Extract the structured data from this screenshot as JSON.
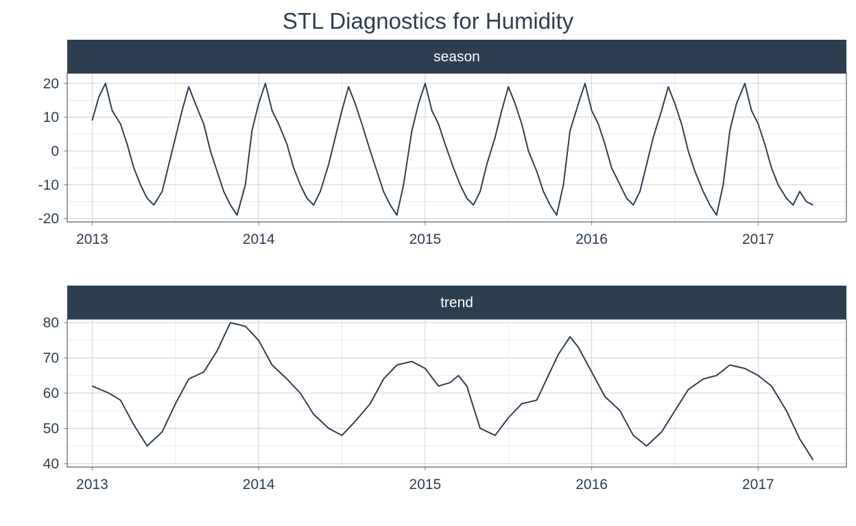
{
  "chart_data": {
    "type": "line",
    "title": "STL Diagnostics for Humidity",
    "xlabel": "",
    "ylabel": "",
    "grid": true,
    "line_color": "#2c3e50",
    "strip_color": "#2c3e50",
    "panels": [
      {
        "name": "season",
        "strip_label": "season",
        "xlim": [
          2012.85,
          2017.53
        ],
        "ylim": [
          -21,
          23
        ],
        "x_ticks": [
          2013,
          2014,
          2015,
          2016,
          2017
        ],
        "x_tick_labels": [
          "2013",
          "2014",
          "2015",
          "2016",
          "2017"
        ],
        "y_ticks": [
          -20,
          -10,
          0,
          10,
          20
        ],
        "y_tick_labels": [
          "-20",
          "-10",
          "0",
          "10",
          "20"
        ],
        "series": [
          {
            "x": [
              2013.0,
              2013.04,
              2013.08,
              2013.12,
              2013.17,
              2013.21,
              2013.25,
              2013.29,
              2013.33,
              2013.37,
              2013.42,
              2013.46,
              2013.5,
              2013.54,
              2013.58,
              2013.62,
              2013.67,
              2013.71,
              2013.75,
              2013.79,
              2013.83,
              2013.87,
              2013.92,
              2013.96,
              2014.0,
              2014.04,
              2014.08,
              2014.12,
              2014.17,
              2014.21,
              2014.25,
              2014.29,
              2014.33,
              2014.37,
              2014.42,
              2014.46,
              2014.5,
              2014.54,
              2014.58,
              2014.62,
              2014.67,
              2014.71,
              2014.75,
              2014.79,
              2014.83,
              2014.87,
              2014.92,
              2014.96,
              2015.0,
              2015.04,
              2015.08,
              2015.12,
              2015.17,
              2015.21,
              2015.25,
              2015.29,
              2015.33,
              2015.37,
              2015.42,
              2015.46,
              2015.5,
              2015.54,
              2015.58,
              2015.62,
              2015.67,
              2015.71,
              2015.75,
              2015.79,
              2015.83,
              2015.87,
              2015.92,
              2015.96,
              2016.0,
              2016.04,
              2016.08,
              2016.12,
              2016.17,
              2016.21,
              2016.25,
              2016.29,
              2016.33,
              2016.37,
              2016.42,
              2016.46,
              2016.5,
              2016.54,
              2016.58,
              2016.62,
              2016.67,
              2016.71,
              2016.75,
              2016.79,
              2016.83,
              2016.87,
              2016.92,
              2016.96,
              2017.0,
              2017.04,
              2017.08,
              2017.12,
              2017.17,
              2017.21,
              2017.25,
              2017.29,
              2017.33
            ],
            "y": [
              9,
              16,
              20,
              12,
              8,
              2,
              -5,
              -10,
              -14,
              -16,
              -12,
              -4,
              4,
              12,
              19,
              14,
              8,
              0,
              -6,
              -12,
              -16,
              -19,
              -10,
              6,
              14,
              20,
              12,
              8,
              2,
              -5,
              -10,
              -14,
              -16,
              -12,
              -4,
              4,
              12,
              19,
              14,
              8,
              0,
              -6,
              -12,
              -16,
              -19,
              -10,
              6,
              14,
              20,
              12,
              8,
              2,
              -5,
              -10,
              -14,
              -16,
              -12,
              -4,
              4,
              12,
              19,
              14,
              8,
              0,
              -6,
              -12,
              -16,
              -19,
              -10,
              6,
              14,
              20,
              12,
              8,
              2,
              -5,
              -10,
              -14,
              -16,
              -12,
              -4,
              4,
              12,
              19,
              14,
              8,
              0,
              -6,
              -12,
              -16,
              -19,
              -10,
              6,
              14,
              20,
              12,
              8,
              2,
              -5,
              -10,
              -14,
              -16,
              -12,
              -15,
              -16
            ]
          }
        ]
      },
      {
        "name": "trend",
        "strip_label": "trend",
        "xlim": [
          2012.85,
          2017.53
        ],
        "ylim": [
          39,
          81
        ],
        "x_ticks": [
          2013,
          2014,
          2015,
          2016,
          2017
        ],
        "x_tick_labels": [
          "2013",
          "2014",
          "2015",
          "2016",
          "2017"
        ],
        "y_ticks": [
          40,
          50,
          60,
          70,
          80
        ],
        "y_tick_labels": [
          "40",
          "50",
          "60",
          "70",
          "80"
        ],
        "series": [
          {
            "x": [
              2013.0,
              2013.1,
              2013.17,
              2013.25,
              2013.33,
              2013.42,
              2013.5,
              2013.58,
              2013.67,
              2013.75,
              2013.83,
              2013.92,
              2014.0,
              2014.08,
              2014.17,
              2014.25,
              2014.33,
              2014.42,
              2014.5,
              2014.58,
              2014.67,
              2014.75,
              2014.83,
              2014.92,
              2015.0,
              2015.08,
              2015.15,
              2015.2,
              2015.25,
              2015.33,
              2015.42,
              2015.5,
              2015.58,
              2015.67,
              2015.75,
              2015.8,
              2015.87,
              2015.92,
              2016.0,
              2016.08,
              2016.17,
              2016.25,
              2016.33,
              2016.42,
              2016.5,
              2016.58,
              2016.67,
              2016.75,
              2016.83,
              2016.92,
              2017.0,
              2017.08,
              2017.17,
              2017.25,
              2017.33
            ],
            "y": [
              62,
              60,
              58,
              51,
              45,
              49,
              57,
              64,
              66,
              72,
              80,
              79,
              75,
              68,
              64,
              60,
              54,
              50,
              48,
              52,
              57,
              64,
              68,
              69,
              67,
              62,
              63,
              65,
              62,
              50,
              48,
              53,
              57,
              58,
              66,
              71,
              76,
              73,
              66,
              59,
              55,
              48,
              45,
              49,
              55,
              61,
              64,
              65,
              68,
              67,
              65,
              62,
              55,
              47,
              41
            ]
          }
        ]
      }
    ]
  }
}
